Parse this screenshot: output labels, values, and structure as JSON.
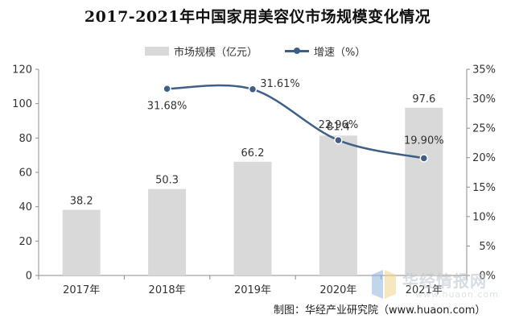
{
  "title": "2017-2021年中国家用美容仪市场规模变化情况",
  "legend": {
    "bar": "市场规模（亿元）",
    "line": "增速（%）"
  },
  "source": "制图：华经产业研究院（www.huaon.com）",
  "watermark": {
    "text": "华经情报网",
    "url": "www.huaon.com"
  },
  "colors": {
    "bar": "#d9d9d9",
    "line": "#3f5f88",
    "axis": "#8c8c8c"
  },
  "chart_data": {
    "type": "bar",
    "categories": [
      "2017年",
      "2018年",
      "2019年",
      "2020年",
      "2021年"
    ],
    "series": [
      {
        "name": "市场规模（亿元）",
        "type": "bar",
        "axis": "left",
        "values": [
          38.2,
          50.3,
          66.2,
          81.4,
          97.6
        ],
        "labels": [
          "38.2",
          "50.3",
          "66.2",
          "81.4",
          "97.6"
        ]
      },
      {
        "name": "增速（%）",
        "type": "line",
        "axis": "right",
        "values": [
          null,
          31.68,
          31.61,
          22.96,
          19.9
        ],
        "labels": [
          "",
          "31.68%",
          "31.61%",
          "22.96%",
          "19.90%"
        ]
      }
    ],
    "y_left": {
      "ticks": [
        0,
        20,
        40,
        60,
        80,
        100,
        120
      ],
      "ylim": [
        0,
        120
      ]
    },
    "y_right": {
      "ticks": [
        "0%",
        "5%",
        "10%",
        "15%",
        "20%",
        "25%",
        "30%",
        "35%"
      ],
      "ylim": [
        0,
        35
      ]
    },
    "grid": false,
    "legend_position": "top-center"
  }
}
